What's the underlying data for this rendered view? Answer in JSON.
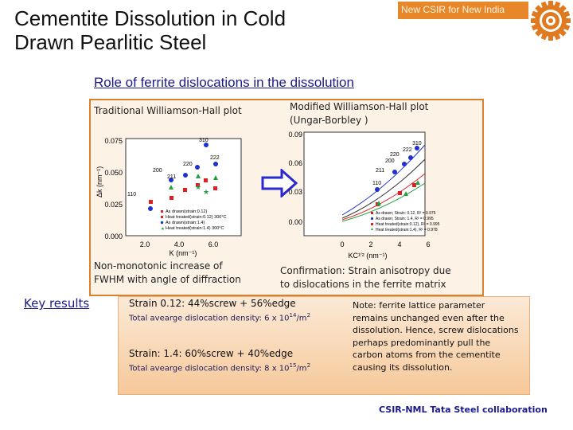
{
  "header": {
    "title_line1": "Cementite Dissolution in Cold",
    "title_line2": "Drawn Pearlitic Steel",
    "brand": "New CSIR for New India"
  },
  "section": {
    "subtitle": "Role of ferrite dislocations in the dissolution",
    "left_plot_label": "Traditional Williamson-Hall plot",
    "right_plot_label_line1": "Modified Williamson-Hall plot",
    "right_plot_label_line2": "(Ungar-Borbley )",
    "left_note_line1": "Non-monotonic increase of",
    "left_note_line2": "FWHM with angle of diffraction",
    "right_note_line1": "Confirmation: Strain anisotropy due",
    "right_note_line2": "to dislocations in the ferrite matrix"
  },
  "key_results": {
    "heading": "Key results",
    "strain1": "Strain 0.12:  44%screw + 56%edge",
    "density1_prefix": "Total avearge dislocation density: 6 x 10",
    "density1_exp": "14",
    "density1_unit": "/m",
    "density1_unit_exp": "2",
    "strain2": "Strain: 1.4: 60%screw + 40%edge",
    "density2_prefix": "Total avearge dislocation density: 8 x 10",
    "density2_exp": "15",
    "density2_unit": "/m",
    "density2_unit_exp": "2",
    "side_note": "Note: ferrite lattice parameter remains unchanged even after the dissolution.  Hence, screw dislocations perhaps predominantly pull the carbon atoms from the cementite causing its dissolution."
  },
  "footer": {
    "collab": "CSIR-NML Tata Steel collaboration"
  },
  "plots": {
    "wh": {
      "xlabel": "K (nm⁻¹)",
      "yticks": [
        "0.075",
        "0.050",
        "0.025",
        "0.000"
      ],
      "xticks": [
        "2.0",
        "4.0",
        "6.0"
      ],
      "peaks": [
        "110",
        "200",
        "211",
        "220",
        "310",
        "222"
      ],
      "legend": [
        "As drawn(strain:0.12)",
        "Heat treated(strain:0.12) 300°C",
        "As drawn(strain:1.4)",
        "Heat treated(strain:1.4)  300°C"
      ]
    },
    "mwh": {
      "xlabel": "KC¹′² (nm⁻¹)",
      "yticks": [
        "0.09",
        "0.06",
        "0.03",
        "0.00"
      ],
      "xticks": [
        "0",
        "2",
        "4",
        "6"
      ],
      "peaks": [
        "110",
        "200",
        "211",
        "220",
        "222",
        "310"
      ],
      "legend": [
        "As drawn; Strain: 0.12, R² = 0.975",
        "As drawn; Strain: 1.4, R² = 0.995",
        "Heat treated(strain:0.12), R² = 0.995",
        "Heat treated(strain:1.4), R² = 0.978"
      ]
    }
  },
  "colors": {
    "accent_orange": "#d9812f",
    "title_blue": "#1a1a8c",
    "series_red": "#e02020",
    "series_blue": "#2030d0",
    "series_green": "#20a040",
    "series_dark": "#303030"
  }
}
